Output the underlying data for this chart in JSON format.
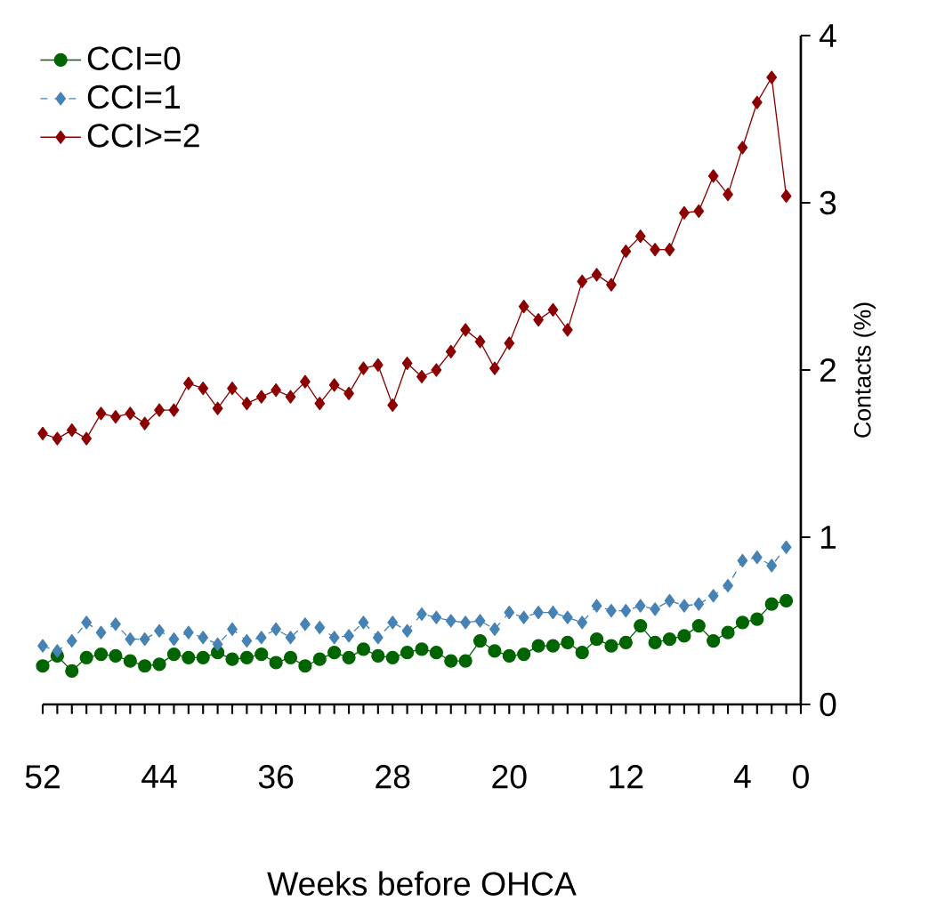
{
  "chart_data": {
    "type": "line",
    "xlabel": "Weeks before OHCA",
    "ylabel": "Contacts (%)",
    "x": [
      52,
      51,
      50,
      49,
      48,
      47,
      46,
      45,
      44,
      43,
      42,
      41,
      40,
      39,
      38,
      37,
      36,
      35,
      34,
      33,
      32,
      31,
      30,
      29,
      28,
      27,
      26,
      25,
      24,
      23,
      22,
      21,
      20,
      19,
      18,
      17,
      16,
      15,
      14,
      13,
      12,
      11,
      10,
      9,
      8,
      7,
      6,
      5,
      4,
      3,
      2,
      1
    ],
    "xlim": [
      52,
      0
    ],
    "ylim": [
      0,
      4
    ],
    "yticks": [
      0,
      1,
      2,
      3,
      4
    ],
    "xticks": [
      52,
      {
        "value": 51,
        "label": null
      },
      {
        "value": 50,
        "label": null
      },
      {
        "value": 49,
        "label": null
      },
      {
        "value": 48,
        "label": null
      },
      {
        "value": 47,
        "label": null
      },
      {
        "value": 46,
        "label": null
      },
      {
        "value": 45,
        "label": null
      },
      44,
      {
        "value": 43,
        "label": null
      },
      {
        "value": 42,
        "label": null
      },
      {
        "value": 41,
        "label": null
      },
      {
        "value": 40,
        "label": null
      },
      {
        "value": 39,
        "label": null
      },
      {
        "value": 38,
        "label": null
      },
      {
        "value": 37,
        "label": null
      },
      36,
      {
        "value": 35,
        "label": null
      },
      {
        "value": 34,
        "label": null
      },
      {
        "value": 33,
        "label": null
      },
      {
        "value": 32,
        "label": null
      },
      {
        "value": 31,
        "label": null
      },
      {
        "value": 30,
        "label": null
      },
      {
        "value": 29,
        "label": null
      },
      28,
      {
        "value": 27,
        "label": null
      },
      {
        "value": 26,
        "label": null
      },
      {
        "value": 25,
        "label": null
      },
      {
        "value": 24,
        "label": null
      },
      {
        "value": 23,
        "label": null
      },
      {
        "value": 22,
        "label": null
      },
      {
        "value": 21,
        "label": null
      },
      20,
      {
        "value": 19,
        "label": null
      },
      {
        "value": 18,
        "label": null
      },
      {
        "value": 17,
        "label": null
      },
      {
        "value": 16,
        "label": null
      },
      {
        "value": 15,
        "label": null
      },
      {
        "value": 14,
        "label": null
      },
      {
        "value": 13,
        "label": null
      },
      12,
      {
        "value": 11,
        "label": null
      },
      {
        "value": 10,
        "label": null
      },
      {
        "value": 9,
        "label": null
      },
      {
        "value": 8,
        "label": null
      },
      {
        "value": 7,
        "label": null
      },
      {
        "value": 6,
        "label": null
      },
      {
        "value": 5,
        "label": null
      },
      4,
      {
        "value": 3,
        "label": null
      },
      {
        "value": 2,
        "label": null
      },
      {
        "value": 1,
        "label": null
      },
      0
    ],
    "legend": "top left",
    "series": [
      {
        "name": "CCI=0",
        "color": "#006400",
        "marker": "circle",
        "line_style": "solid",
        "values": [
          0.23,
          0.29,
          0.2,
          0.28,
          0.3,
          0.29,
          0.26,
          0.23,
          0.24,
          0.3,
          0.28,
          0.28,
          0.31,
          0.27,
          0.28,
          0.3,
          0.25,
          0.28,
          0.23,
          0.27,
          0.31,
          0.28,
          0.33,
          0.29,
          0.28,
          0.31,
          0.33,
          0.31,
          0.26,
          0.26,
          0.38,
          0.32,
          0.29,
          0.3,
          0.35,
          0.35,
          0.37,
          0.31,
          0.39,
          0.35,
          0.37,
          0.47,
          0.37,
          0.39,
          0.41,
          0.47,
          0.38,
          0.43,
          0.49,
          0.51,
          0.6,
          0.62
        ]
      },
      {
        "name": "CCI=1",
        "color": "#4682b4",
        "marker": "diamond",
        "line_style": "dashed",
        "values": [
          0.35,
          0.32,
          0.38,
          0.49,
          0.43,
          0.48,
          0.39,
          0.39,
          0.44,
          0.39,
          0.43,
          0.4,
          0.36,
          0.45,
          0.38,
          0.4,
          0.45,
          0.4,
          0.48,
          0.46,
          0.4,
          0.41,
          0.49,
          0.4,
          0.49,
          0.44,
          0.54,
          0.52,
          0.5,
          0.49,
          0.5,
          0.45,
          0.55,
          0.52,
          0.55,
          0.55,
          0.52,
          0.49,
          0.59,
          0.56,
          0.56,
          0.59,
          0.57,
          0.62,
          0.59,
          0.6,
          0.65,
          0.71,
          0.86,
          0.88,
          0.83,
          0.94
        ]
      },
      {
        "name": "CCI>=2",
        "color": "#8b0000",
        "marker": "diamond",
        "line_style": "solid",
        "values": [
          1.62,
          1.59,
          1.64,
          1.59,
          1.74,
          1.72,
          1.74,
          1.68,
          1.76,
          1.76,
          1.92,
          1.89,
          1.77,
          1.89,
          1.8,
          1.84,
          1.88,
          1.84,
          1.93,
          1.8,
          1.91,
          1.86,
          2.01,
          2.03,
          1.79,
          2.04,
          1.96,
          2.0,
          2.11,
          2.24,
          2.17,
          2.01,
          2.16,
          2.38,
          2.3,
          2.36,
          2.24,
          2.53,
          2.57,
          2.51,
          2.71,
          2.8,
          2.72,
          2.72,
          2.94,
          2.95,
          3.16,
          3.05,
          3.33,
          3.6,
          3.75,
          3.04
        ]
      }
    ]
  }
}
